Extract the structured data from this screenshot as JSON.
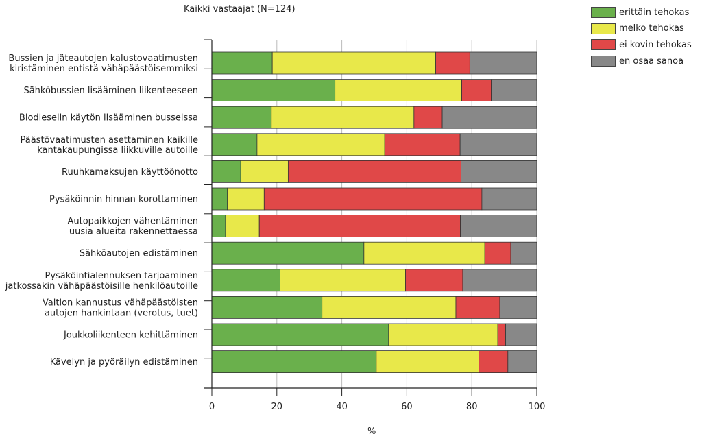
{
  "chart_data": {
    "type": "bar",
    "stacked": true,
    "orientation": "horizontal",
    "title": "Kaikki vastaajat (N=124)",
    "xlabel": "%",
    "xlim": [
      0,
      100
    ],
    "xticks": [
      0,
      20,
      40,
      60,
      80,
      100
    ],
    "grid": true,
    "legend_position": "top-right",
    "categories": [
      [
        "Bussien ja jäteautojen kalustovaatimusten",
        "kiristäminen entistä vähäpäästöisemmiksi"
      ],
      [
        "Sähköbussien lisääminen liikenteeseen"
      ],
      [
        "Biodieselin käytön lisääminen busseissa"
      ],
      [
        "Päästövaatimusten asettaminen kaikille",
        "kantakaupungissa liikkuville autoille"
      ],
      [
        "Ruuhkamaksujen käyttöönotto"
      ],
      [
        "Pysäköinnin hinnan korottaminen"
      ],
      [
        "Autopaikkojen vähentäminen",
        "uusia alueita rakennettaessa"
      ],
      [
        "Sähköautojen edistäminen"
      ],
      [
        "Pysäköintialennuksen tarjoaminen",
        "jatkossakin vähäpäästöisille henkilöautoille"
      ],
      [
        "Valtion kannustus vähäpäästöisten",
        "autojen hankintaan (verotus, tuet)"
      ],
      [
        "Joukkoliikenteen kehittäminen"
      ],
      [
        "Kävelyn ja pyöräilyn edistäminen"
      ]
    ],
    "series": [
      {
        "name": "erittäin tehokas",
        "color": "#6ab04c",
        "values": [
          18.6,
          37.9,
          18.3,
          13.9,
          8.9,
          4.8,
          4.2,
          46.8,
          21.0,
          33.9,
          54.4,
          50.6
        ]
      },
      {
        "name": "melko tehokas",
        "color": "#e8e84a",
        "values": [
          50.3,
          39.0,
          43.9,
          39.3,
          14.6,
          11.3,
          10.4,
          37.2,
          38.6,
          41.2,
          33.6,
          31.6
        ]
      },
      {
        "name": "ei kovin tehokas",
        "color": "#e04848",
        "values": [
          10.5,
          9.1,
          8.7,
          23.2,
          53.2,
          67.0,
          61.9,
          8.0,
          17.6,
          13.5,
          2.4,
          8.9
        ]
      },
      {
        "name": "en osaa sanoa",
        "color": "#888888",
        "values": [
          20.6,
          14.0,
          29.1,
          23.6,
          23.3,
          16.9,
          23.5,
          8.0,
          22.8,
          11.4,
          9.6,
          8.9
        ]
      }
    ]
  }
}
